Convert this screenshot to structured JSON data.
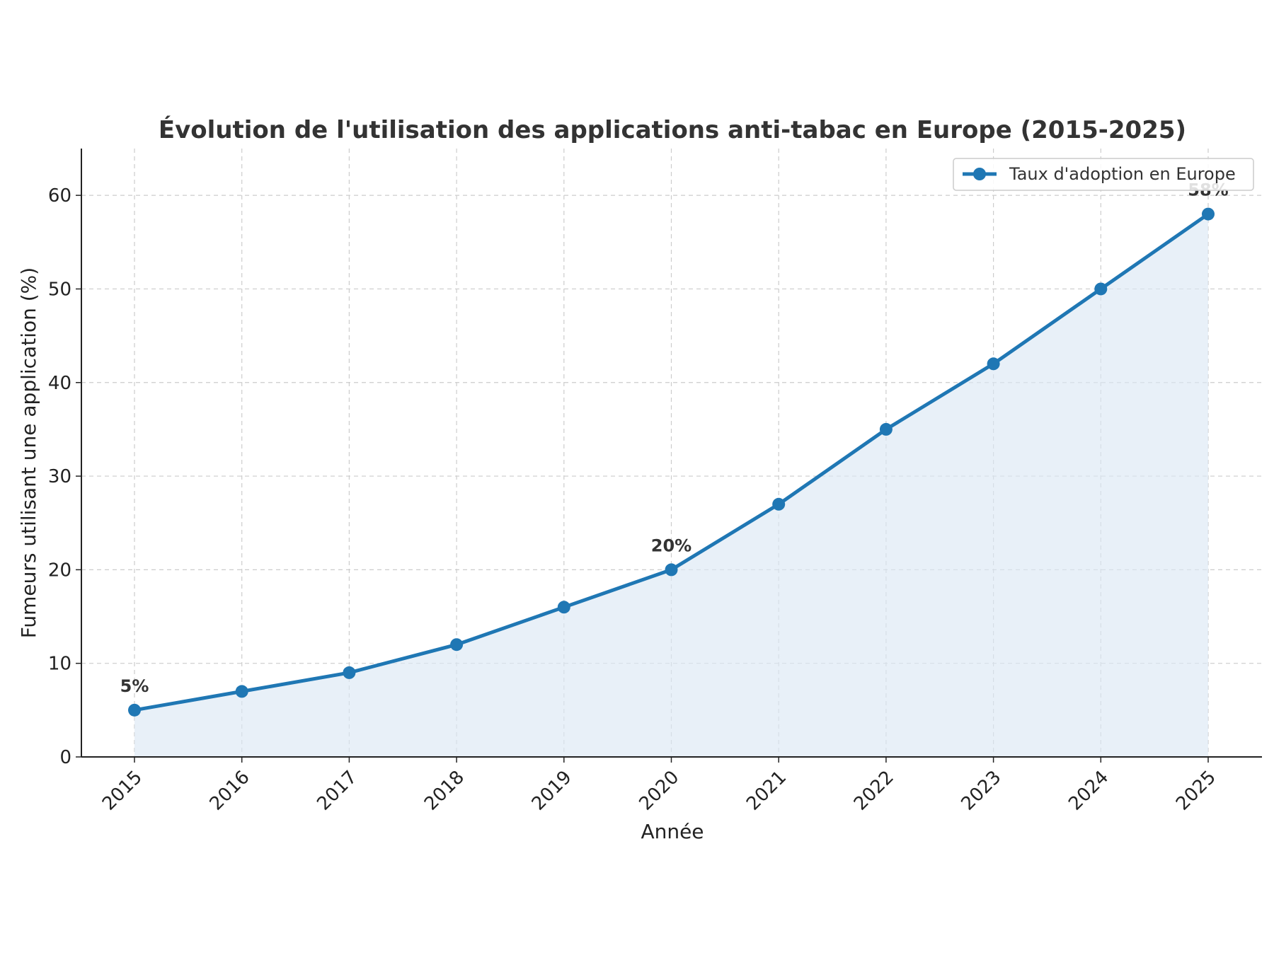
{
  "chart_data": {
    "type": "line",
    "title": "Évolution de l'utilisation des applications anti-tabac en Europe (2015-2025)",
    "xlabel": "Année",
    "ylabel": "Fumeurs utilisant une application (%)",
    "categories": [
      "2015",
      "2016",
      "2017",
      "2018",
      "2019",
      "2020",
      "2021",
      "2022",
      "2023",
      "2024",
      "2025"
    ],
    "series": [
      {
        "name": "Taux d'adoption en Europe",
        "values": [
          5,
          7,
          9,
          12,
          16,
          20,
          27,
          35,
          42,
          50,
          58
        ],
        "color": "#1f77b4",
        "fill": "#dce8f5"
      }
    ],
    "ylim": [
      0,
      65
    ],
    "yticks": [
      0,
      10,
      20,
      30,
      40,
      50,
      60
    ],
    "annotations": [
      {
        "category": "2015",
        "value": 5,
        "text": "5%"
      },
      {
        "category": "2020",
        "value": 20,
        "text": "20%"
      },
      {
        "category": "2025",
        "value": 58,
        "text": "58%"
      }
    ],
    "grid": true,
    "legend": "top-right"
  }
}
